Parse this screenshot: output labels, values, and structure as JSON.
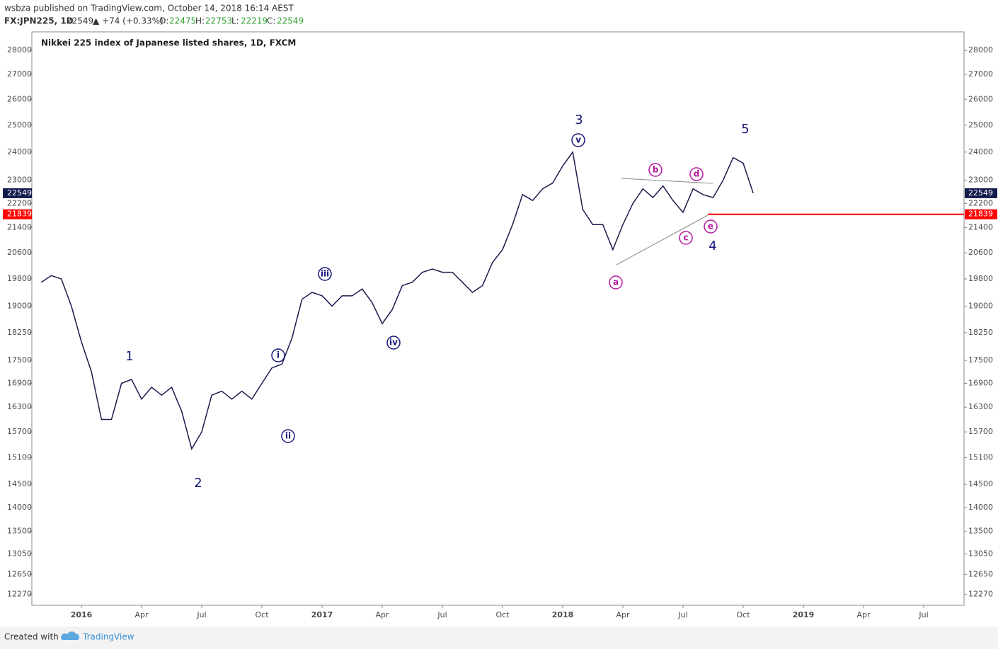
{
  "header": {
    "publisher": "wsbza published on TradingView.com, October 14, 2018 16:14 AEST",
    "symbol": "FX:JPN225, 1D",
    "price": "22549",
    "change": "▲ +74 (+0.33%)",
    "o_label": "O:",
    "open": "22475",
    "h_label": "H:",
    "high": "22753",
    "l_label": "L:",
    "low": "22219",
    "c_label": "C:",
    "close": "22549"
  },
  "footer": {
    "created": "Created with",
    "brand": "TradingView"
  },
  "chart_data": {
    "type": "line",
    "title": "Nikkei 225 index of Japanese listed shares, 1D, FXCM",
    "categories": [
      null,
      null,
      null,
      null,
      "2016",
      null,
      null,
      null,
      null,
      null,
      "Apr",
      null,
      null,
      null,
      null,
      null,
      "Jul",
      null,
      null,
      null,
      null,
      null,
      "Oct",
      null,
      null,
      null,
      null,
      null,
      "2017",
      null,
      null,
      null,
      null,
      null,
      "Apr",
      null,
      null,
      null,
      null,
      null,
      "Jul",
      null,
      null,
      null,
      null,
      null,
      "Oct",
      null,
      null,
      null,
      null,
      null,
      "2018",
      null,
      null,
      null,
      null,
      null,
      "Apr",
      null,
      null,
      null,
      null,
      null,
      "Jul",
      null,
      null,
      null,
      null,
      null,
      "Oct",
      null,
      null,
      null,
      null,
      null,
      "2019",
      null,
      null,
      null,
      null,
      null,
      "Apr",
      null,
      null,
      null,
      null,
      null,
      "Jul",
      null,
      null,
      null
    ],
    "series": [
      {
        "name": "FX:JPN225",
        "color": "#1b1b4d",
        "values": [
          19700,
          19900,
          19800,
          19000,
          18000,
          17200,
          16000,
          16000,
          16900,
          17000,
          16500,
          16800,
          16600,
          16800,
          16200,
          15300,
          15700,
          16600,
          16700,
          16500,
          16700,
          16500,
          16900,
          17300,
          17400,
          18100,
          19200,
          19400,
          19300,
          19000,
          19300,
          19300,
          19500,
          19100,
          18500,
          18900,
          19600,
          19700,
          20000,
          20100,
          20000,
          20000,
          19700,
          19400,
          19600,
          20300,
          20700,
          21500,
          22500,
          22300,
          22700,
          22900,
          23500,
          24000,
          22000,
          21500,
          21500,
          20700,
          21500,
          22200,
          22700,
          22400,
          22800,
          22300,
          21900,
          22700,
          22500,
          22400,
          23000,
          23800,
          23600,
          22549,
          null,
          null,
          null,
          null,
          null,
          null,
          null,
          null,
          null,
          null,
          null,
          null,
          null,
          null,
          null,
          null,
          null,
          null,
          null,
          null
        ]
      }
    ],
    "log_scale": true,
    "ylim": [
      12070,
      28800
    ],
    "yticks": [
      28000,
      27000,
      26000,
      25000,
      24000,
      23000,
      22200,
      21400,
      20600,
      19800,
      19000,
      18250,
      17500,
      16900,
      16300,
      15700,
      15100,
      14500,
      14000,
      13500,
      13050,
      12650,
      12270
    ],
    "last_value": 22549,
    "last_color": "#131a4d",
    "level": 21839,
    "level_color": "#ff0000",
    "annotations": {
      "waves": [
        "1",
        "2",
        "3",
        "4",
        "5"
      ],
      "minor": [
        "i",
        "ii",
        "iii",
        "iv",
        "v"
      ],
      "abc": [
        "a",
        "b",
        "c",
        "d",
        "e"
      ]
    }
  }
}
